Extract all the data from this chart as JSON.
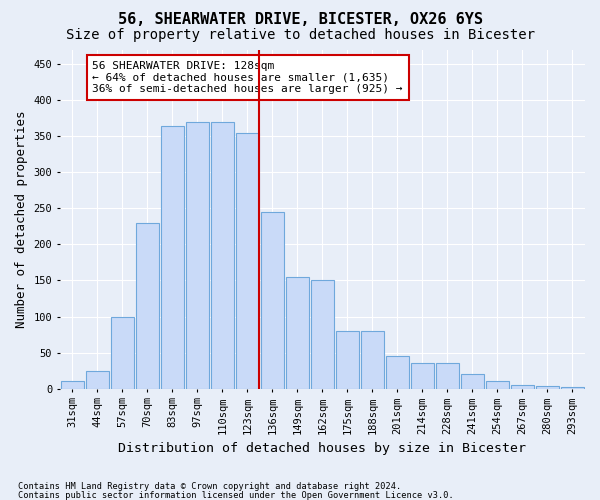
{
  "title": "56, SHEARWATER DRIVE, BICESTER, OX26 6YS",
  "subtitle": "Size of property relative to detached houses in Bicester",
  "xlabel": "Distribution of detached houses by size in Bicester",
  "ylabel": "Number of detached properties",
  "footnote1": "Contains HM Land Registry data © Crown copyright and database right 2024.",
  "footnote2": "Contains public sector information licensed under the Open Government Licence v3.0.",
  "bin_labels": [
    "31sqm",
    "44sqm",
    "57sqm",
    "70sqm",
    "83sqm",
    "97sqm",
    "110sqm",
    "123sqm",
    "136sqm",
    "149sqm",
    "162sqm",
    "175sqm",
    "188sqm",
    "201sqm",
    "214sqm",
    "228sqm",
    "241sqm",
    "254sqm",
    "267sqm",
    "280sqm",
    "293sqm"
  ],
  "bar_heights": [
    10,
    25,
    100,
    230,
    365,
    370,
    370,
    355,
    245,
    155,
    150,
    80,
    80,
    45,
    35,
    35,
    20,
    10,
    5,
    3,
    2
  ],
  "bar_color": "#c9daf8",
  "bar_edge_color": "#6fa8dc",
  "marker_bin_index": 7,
  "marker_color": "#cc0000",
  "annotation_text": "56 SHEARWATER DRIVE: 128sqm\n← 64% of detached houses are smaller (1,635)\n36% of semi-detached houses are larger (925) →",
  "annotation_box_color": "#ffffff",
  "annotation_border_color": "#cc0000",
  "ylim": [
    0,
    470
  ],
  "yticks": [
    0,
    50,
    100,
    150,
    200,
    250,
    300,
    350,
    400,
    450
  ],
  "background_color": "#e8eef8",
  "grid_color": "#ffffff",
  "title_fontsize": 11,
  "subtitle_fontsize": 10,
  "axis_fontsize": 9,
  "tick_fontsize": 7.5,
  "annotation_fontsize": 8
}
